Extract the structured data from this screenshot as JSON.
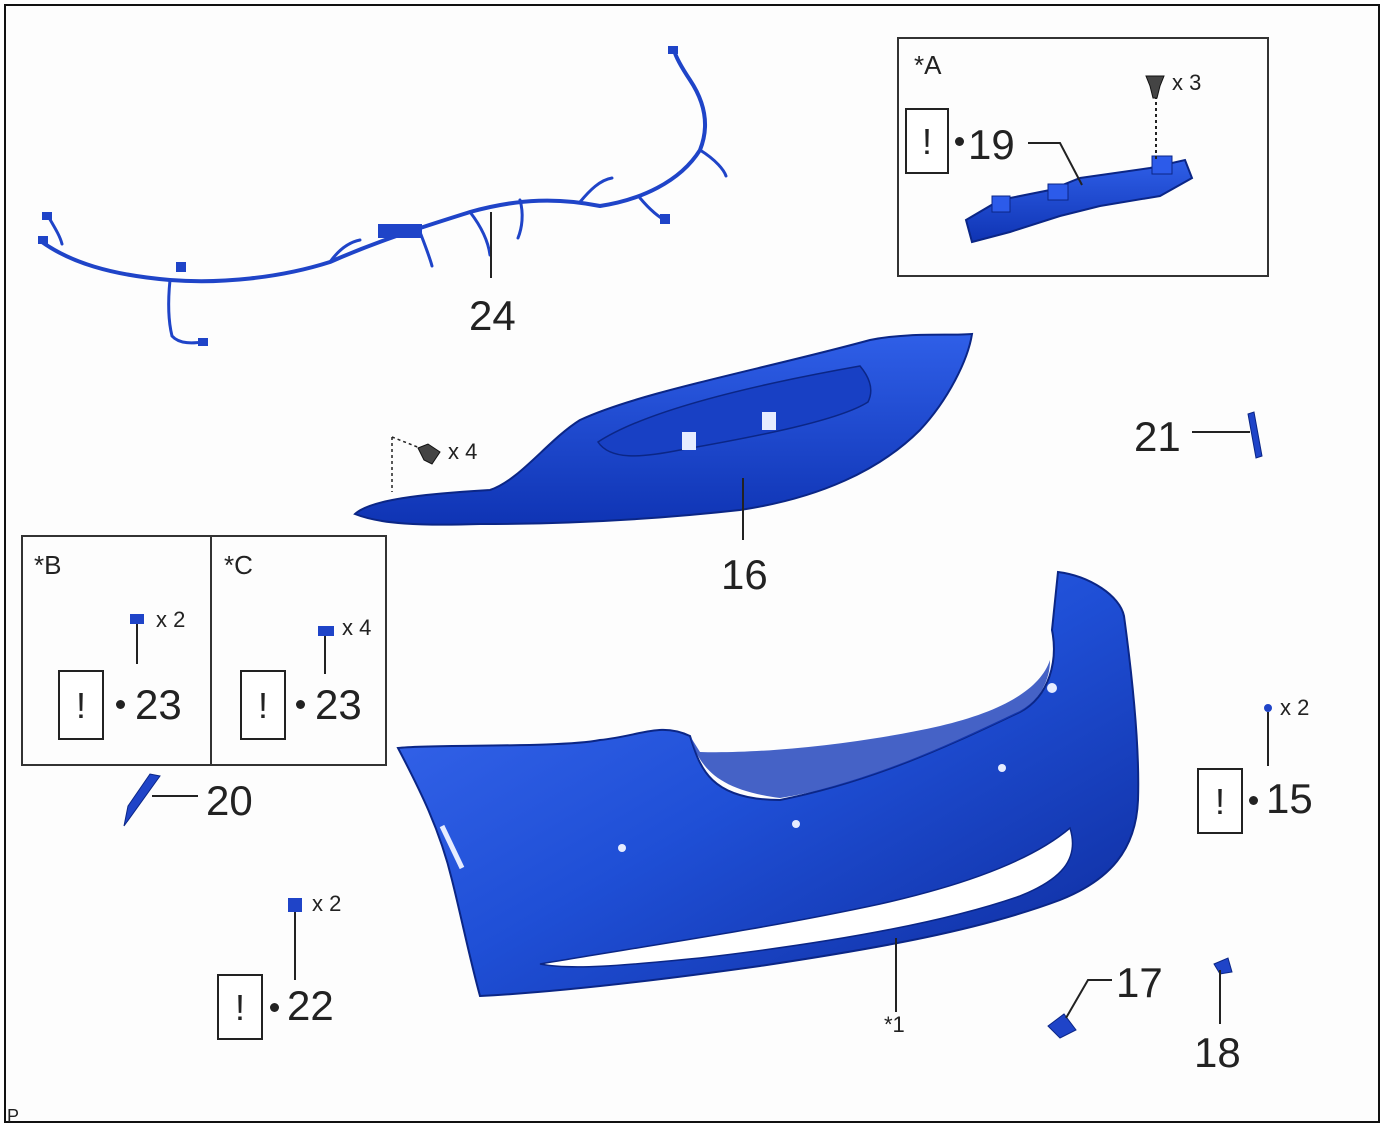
{
  "callouts": {
    "c24": "24",
    "c19": "19",
    "c16": "16",
    "c21": "21",
    "c20": "20",
    "c23b": "23",
    "c23c": "23",
    "c15": "15",
    "c22": "22",
    "c17": "17",
    "c18": "18",
    "c1": "*1"
  },
  "view_labels": {
    "A": "*A",
    "B": "*B",
    "C": "*C"
  },
  "quantities": {
    "q19": "x 3",
    "q16": "x 4",
    "q23b": "x 2",
    "q23c": "x 4",
    "q15": "x 2",
    "q22": "x 2"
  },
  "warning_symbol": "!",
  "footer_code": "P",
  "colors": {
    "part_fill": "#1f4fd6",
    "part_dark": "#0f2f9e",
    "part_light": "#3f6ff0",
    "line": "#222222"
  },
  "icons": [
    "wire-harness-icon",
    "bracket-icon",
    "bumper-support-icon",
    "bumper-cover-icon",
    "clip-icon",
    "screw-icon",
    "reflector-icon"
  ]
}
